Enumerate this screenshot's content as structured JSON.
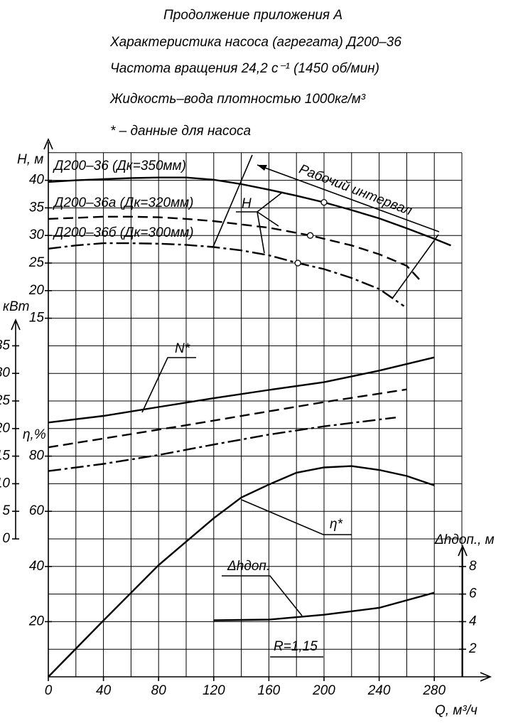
{
  "header": {
    "lines": [
      "Продолжение приложения А",
      "Характеристика насоса (агрегата) Д200–36",
      "Частота вращения 24,2 с⁻¹ (1450 об/мин)",
      "Жидкость–вода плотностью 1000кг/м³",
      "* – данные для насоса"
    ]
  },
  "chart_data": {
    "type": "line",
    "x_label": "Q, м³/ч",
    "xlim": [
      0,
      300
    ],
    "xticks": [
      0,
      40,
      80,
      120,
      160,
      200,
      240,
      280
    ],
    "annotations": {
      "working_interval": "Рабочий интервал",
      "head": "H",
      "power": "N*",
      "efficiency": "η*",
      "npsh": "Δhдоп.",
      "ratio": "R=1,15"
    },
    "axes": [
      {
        "label": "H, м",
        "ylim": [
          15,
          40
        ],
        "yticks": [
          15,
          20,
          25,
          30,
          35,
          40
        ],
        "series": [
          {
            "name": "Д200–36 (Дк=350мм)",
            "style": "solid",
            "x": [
              0,
              20,
              40,
              60,
              80,
              100,
              120,
              140,
              160,
              180,
              200,
              220,
              240,
              260,
              280,
              292
            ],
            "values": [
              39.7,
              40,
              40.2,
              40.4,
              40.5,
              40.5,
              40.1,
              39.3,
              38.3,
              37.2,
              36,
              34.6,
              33.1,
              31.3,
              29.4,
              28.2
            ],
            "marker": {
              "x": 200,
              "value": 36
            }
          },
          {
            "name": "Д200–36а (Дк=320мм)",
            "style": "dashed",
            "x": [
              0,
              20,
              40,
              60,
              80,
              100,
              120,
              140,
              160,
              190,
              220,
              240,
              260,
              270
            ],
            "values": [
              33,
              33.2,
              33.4,
              33.4,
              33.3,
              33,
              32.6,
              32,
              31.4,
              30,
              28.2,
              26.6,
              24.5,
              21.8
            ],
            "marker": {
              "x": 190,
              "value": 30
            }
          },
          {
            "name": "Д200–36б (Дк=300мм)",
            "style": "dashdot",
            "x": [
              0,
              20,
              40,
              60,
              80,
              100,
              120,
              140,
              160,
              181,
              200,
              220,
              240,
              258
            ],
            "values": [
              27.6,
              28.2,
              28.6,
              28.6,
              28.5,
              28.3,
              27.9,
              27.3,
              26.4,
              25,
              23.9,
              22.3,
              20.3,
              17.2
            ],
            "marker": {
              "x": 181,
              "value": 25
            }
          }
        ]
      },
      {
        "label": "кВт",
        "ylim": [
          0,
          35
        ],
        "yticks": [
          0,
          5,
          10,
          15,
          20,
          25,
          30,
          35
        ],
        "series": [
          {
            "style": "solid",
            "x": [
              0,
              40,
              80,
              120,
              160,
              200,
              240,
              280
            ],
            "values": [
              21.1,
              22.3,
              23.9,
              25.5,
              27,
              28.4,
              30.5,
              32.9
            ]
          },
          {
            "style": "dashed",
            "x": [
              0,
              50,
              100,
              150,
              200,
              260
            ],
            "values": [
              16.6,
              18.6,
              20.6,
              22.7,
              24.8,
              27.1
            ]
          },
          {
            "style": "dashdot",
            "x": [
              0,
              40,
              80,
              120,
              160,
              200,
              252
            ],
            "values": [
              12.3,
              13.6,
              15.2,
              17.1,
              18.9,
              20.4,
              22
            ]
          }
        ]
      },
      {
        "label": "η,%",
        "ylim": [
          0,
          80
        ],
        "yticks": [
          20,
          40,
          60,
          80
        ],
        "series": [
          {
            "style": "solid",
            "x": [
              0,
              40,
              80,
              120,
              140,
              160,
              180,
              200,
              220,
              240,
              260,
              280
            ],
            "values": [
              0,
              20.4,
              40.5,
              57.5,
              65,
              69.7,
              74,
              75.9,
              76.4,
              75,
              72.8,
              69.4
            ]
          }
        ]
      },
      {
        "label": "Δhдоп., м",
        "ylim": [
          0,
          8
        ],
        "yticks": [
          2,
          4,
          6,
          8
        ],
        "series": [
          {
            "style": "solid",
            "x": [
              120,
              160,
              200,
              240,
              280
            ],
            "values": [
              4.1,
              4.15,
              4.5,
              5,
              6.1
            ]
          }
        ]
      }
    ]
  }
}
